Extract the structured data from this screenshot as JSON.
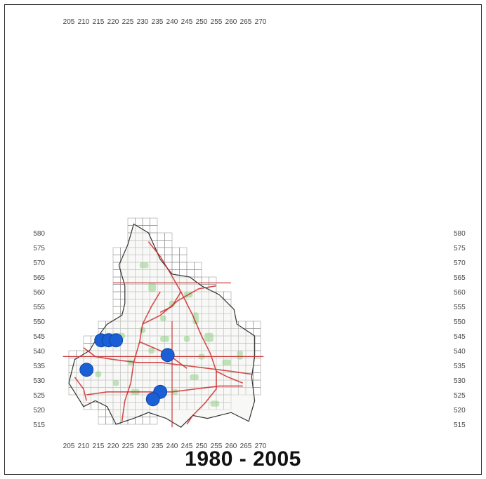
{
  "map": {
    "title": "1980 - 2005",
    "x_ticks": [
      "205",
      "210",
      "215",
      "220",
      "225",
      "230",
      "235",
      "240",
      "245",
      "250",
      "255",
      "260",
      "265",
      "270"
    ],
    "y_ticks": [
      "580",
      "575",
      "570",
      "565",
      "560",
      "555",
      "550",
      "545",
      "540",
      "535",
      "530",
      "525",
      "520",
      "515"
    ],
    "colors": {
      "grid": "#8a8a8a",
      "border": "#333333",
      "roads": "#cc2222",
      "reference_lines": "#c43a3a",
      "green_areas": "#8fcf86",
      "observation_dots": "#1a5fd6"
    },
    "observations": [
      {
        "x": 216,
        "y": 543.5
      },
      {
        "x": 218.5,
        "y": 543.5
      },
      {
        "x": 221,
        "y": 543.5
      },
      {
        "x": 211,
        "y": 533.5
      },
      {
        "x": 238.5,
        "y": 538.5
      },
      {
        "x": 236,
        "y": 526
      },
      {
        "x": 233.5,
        "y": 523.5
      }
    ]
  }
}
